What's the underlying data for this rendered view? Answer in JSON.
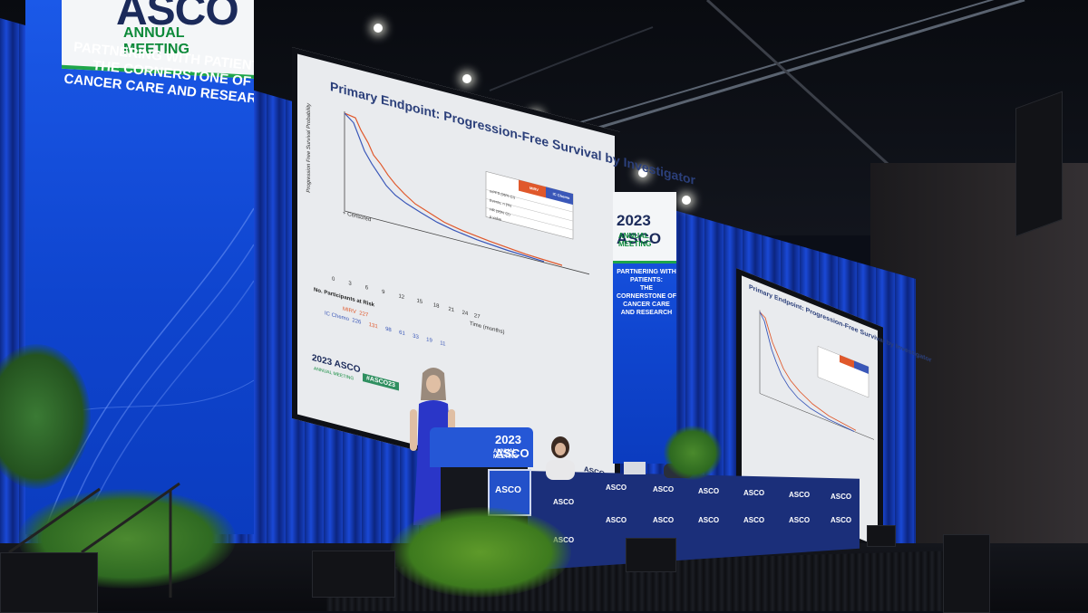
{
  "scene": {
    "left_banner": {
      "logo": "ASCO",
      "logo_sub": "ANNUAL MEETING",
      "tagline": [
        "PARTNERING WITH PATIENTS:",
        "THE CORNERSTONE OF",
        "CANCER CARE AND RESEARCH"
      ]
    },
    "mid_banner": {
      "year_logo": "2023 ASCO",
      "logo_sub": "ANNUAL MEETING",
      "tagline": [
        "PARTNERING WITH PATIENTS:",
        "THE CORNERSTONE OF",
        "CANCER CARE AND RESEARCH"
      ]
    },
    "main_slide": {
      "title": "Primary Endpoint: Progression-Free Survival by Investigator",
      "ylabel": "Progression Free Survival Probability",
      "censored_label": "+ Censored",
      "risk_header": "No. Participants at Risk",
      "risk_rows": [
        {
          "label": "MIRV",
          "values": [
            "227"
          ]
        },
        {
          "label": "IC Chemo",
          "values": [
            "226",
            "131",
            "98",
            "61",
            "33",
            "19",
            "11"
          ]
        }
      ],
      "x_ticks": [
        "0",
        "3",
        "6",
        "9",
        "12",
        "15",
        "18",
        "21",
        "24",
        "27"
      ],
      "xlabel": "Time (months)",
      "legend_cols": [
        "MIRV",
        "IC Chemo"
      ],
      "legend_rows": [
        "mPFS (95% CI)",
        "Events, n (%)",
        "HR (95% CI)",
        "p-value"
      ],
      "footer_logo": "2023 ASCO",
      "footer_sub": "ANNUAL MEETING",
      "hashtag": "#ASCO23",
      "corner_logo": "ASCO"
    },
    "right_slide": {
      "title": "Primary Endpoint: Progression-Free Survival by Investigator"
    },
    "podium": {
      "line1": "2023 ASCO",
      "line2": "ANNUAL MEETING",
      "sign": "ASCO"
    },
    "table_marks": "ASCO",
    "colors": {
      "curtain": "#1a49d6",
      "banner": "#1b59e8",
      "mirv_curve": "#e0582b",
      "chemo_curve": "#3a57b8",
      "asco_green": "#1fa64a"
    }
  }
}
